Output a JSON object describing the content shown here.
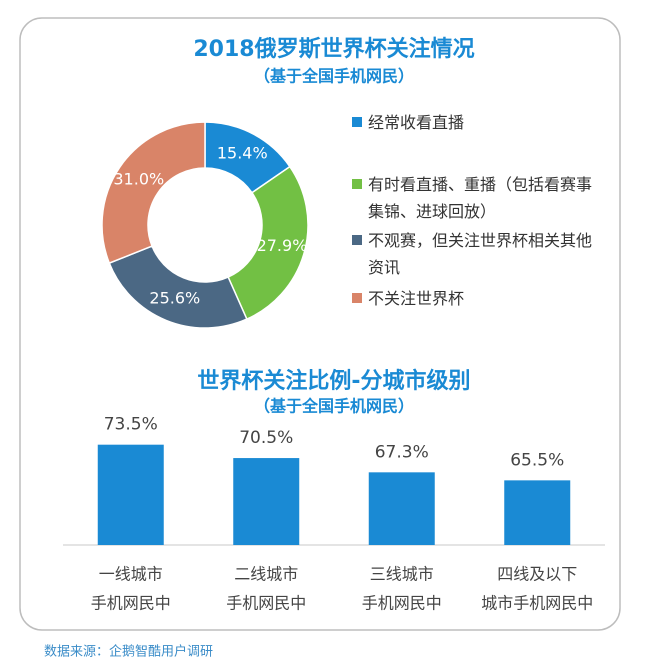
{
  "chart_data": [
    {
      "type": "donut",
      "title": "2018俄罗斯世界杯关注情况",
      "subtitle": "（基于全国手机网民）",
      "categories": [
        "经常收看直播",
        "有时看直播、重播（包括看赛事集锦、进球回放）",
        "不观赛，但关注世界杯相关其他资讯",
        "不关注世界杯"
      ],
      "values": [
        15.4,
        27.9,
        25.6,
        31.0
      ],
      "value_labels": [
        "15.4%",
        "27.9%",
        "25.6%",
        "31.0%"
      ],
      "colors": [
        "#1a8ad4",
        "#72c044",
        "#4b6884",
        "#d98468"
      ],
      "legend": "right"
    },
    {
      "type": "bar",
      "title": "世界杯关注比例-分城市级别",
      "subtitle": "（基于全国手机网民）",
      "categories": [
        [
          "一线城市",
          "手机网民中"
        ],
        [
          "二线城市",
          "手机网民中"
        ],
        [
          "三线城市",
          "手机网民中"
        ],
        [
          "四线及以下",
          "城市手机网民中"
        ]
      ],
      "values": [
        73.5,
        70.5,
        67.3,
        65.5
      ],
      "value_labels": [
        "73.5%",
        "70.5%",
        "67.3%",
        "65.5%"
      ],
      "color": "#1a8ad4",
      "ylim": [
        51,
        75
      ]
    }
  ],
  "source": "数据来源：企鹅智酷用户调研"
}
